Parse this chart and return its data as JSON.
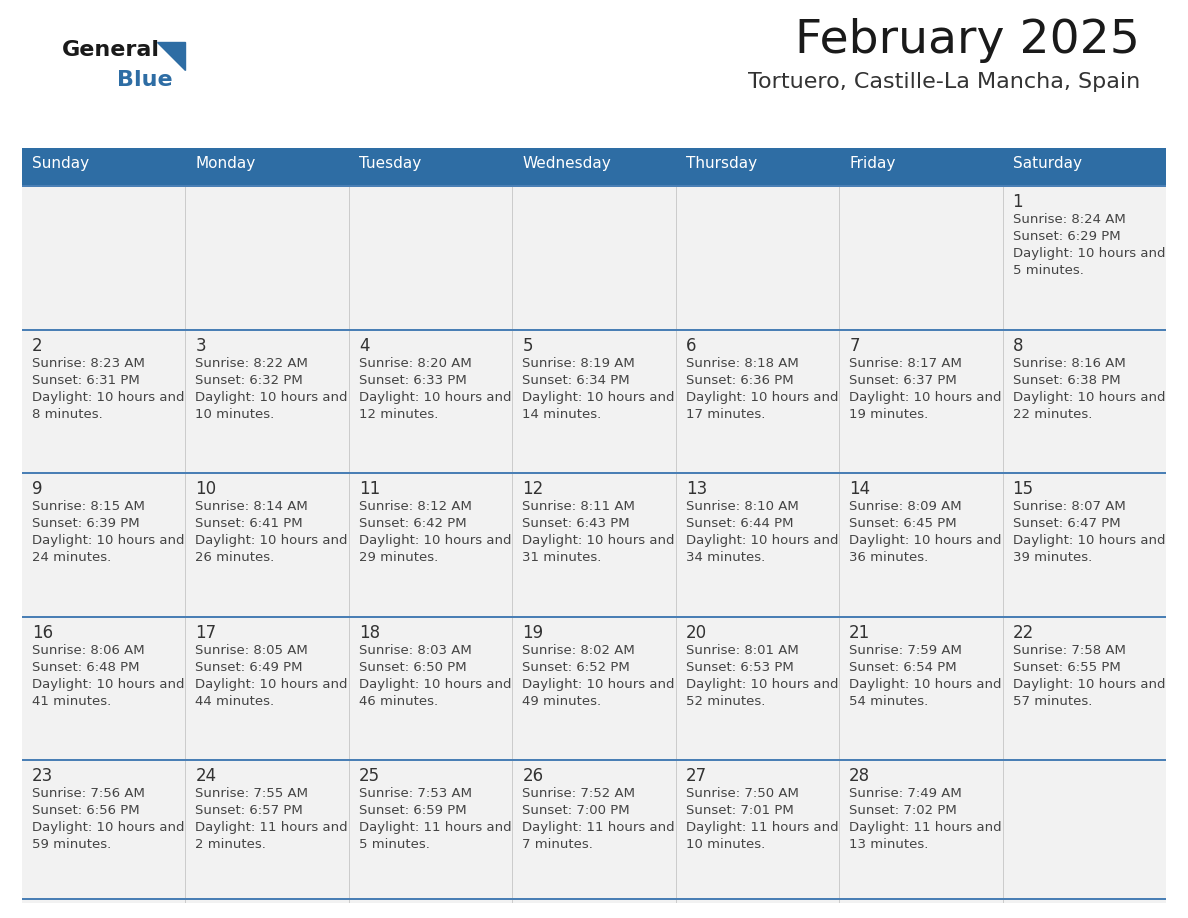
{
  "title": "February 2025",
  "subtitle": "Tortuero, Castille-La Mancha, Spain",
  "days_of_week": [
    "Sunday",
    "Monday",
    "Tuesday",
    "Wednesday",
    "Thursday",
    "Friday",
    "Saturday"
  ],
  "header_bg": "#2E6DA4",
  "header_text": "#FFFFFF",
  "cell_bg": "#F2F2F2",
  "cell_bg_empty": "#EBEBEB",
  "border_color": "#2E6DA4",
  "row_border_color": "#4A7FB5",
  "day_number_color": "#333333",
  "text_color": "#444444",
  "logo_general_color": "#1A1A1A",
  "logo_blue_color": "#2E6DA4",
  "calendar_data": [
    [
      null,
      null,
      null,
      null,
      null,
      null,
      1
    ],
    [
      2,
      3,
      4,
      5,
      6,
      7,
      8
    ],
    [
      9,
      10,
      11,
      12,
      13,
      14,
      15
    ],
    [
      16,
      17,
      18,
      19,
      20,
      21,
      22
    ],
    [
      23,
      24,
      25,
      26,
      27,
      28,
      null
    ]
  ],
  "cell_info": {
    "1": {
      "sunrise": "8:24 AM",
      "sunset": "6:29 PM",
      "daylight": "10 hours and 5 minutes."
    },
    "2": {
      "sunrise": "8:23 AM",
      "sunset": "6:31 PM",
      "daylight": "10 hours and 8 minutes."
    },
    "3": {
      "sunrise": "8:22 AM",
      "sunset": "6:32 PM",
      "daylight": "10 hours and 10 minutes."
    },
    "4": {
      "sunrise": "8:20 AM",
      "sunset": "6:33 PM",
      "daylight": "10 hours and 12 minutes."
    },
    "5": {
      "sunrise": "8:19 AM",
      "sunset": "6:34 PM",
      "daylight": "10 hours and 14 minutes."
    },
    "6": {
      "sunrise": "8:18 AM",
      "sunset": "6:36 PM",
      "daylight": "10 hours and 17 minutes."
    },
    "7": {
      "sunrise": "8:17 AM",
      "sunset": "6:37 PM",
      "daylight": "10 hours and 19 minutes."
    },
    "8": {
      "sunrise": "8:16 AM",
      "sunset": "6:38 PM",
      "daylight": "10 hours and 22 minutes."
    },
    "9": {
      "sunrise": "8:15 AM",
      "sunset": "6:39 PM",
      "daylight": "10 hours and 24 minutes."
    },
    "10": {
      "sunrise": "8:14 AM",
      "sunset": "6:41 PM",
      "daylight": "10 hours and 26 minutes."
    },
    "11": {
      "sunrise": "8:12 AM",
      "sunset": "6:42 PM",
      "daylight": "10 hours and 29 minutes."
    },
    "12": {
      "sunrise": "8:11 AM",
      "sunset": "6:43 PM",
      "daylight": "10 hours and 31 minutes."
    },
    "13": {
      "sunrise": "8:10 AM",
      "sunset": "6:44 PM",
      "daylight": "10 hours and 34 minutes."
    },
    "14": {
      "sunrise": "8:09 AM",
      "sunset": "6:45 PM",
      "daylight": "10 hours and 36 minutes."
    },
    "15": {
      "sunrise": "8:07 AM",
      "sunset": "6:47 PM",
      "daylight": "10 hours and 39 minutes."
    },
    "16": {
      "sunrise": "8:06 AM",
      "sunset": "6:48 PM",
      "daylight": "10 hours and 41 minutes."
    },
    "17": {
      "sunrise": "8:05 AM",
      "sunset": "6:49 PM",
      "daylight": "10 hours and 44 minutes."
    },
    "18": {
      "sunrise": "8:03 AM",
      "sunset": "6:50 PM",
      "daylight": "10 hours and 46 minutes."
    },
    "19": {
      "sunrise": "8:02 AM",
      "sunset": "6:52 PM",
      "daylight": "10 hours and 49 minutes."
    },
    "20": {
      "sunrise": "8:01 AM",
      "sunset": "6:53 PM",
      "daylight": "10 hours and 52 minutes."
    },
    "21": {
      "sunrise": "7:59 AM",
      "sunset": "6:54 PM",
      "daylight": "10 hours and 54 minutes."
    },
    "22": {
      "sunrise": "7:58 AM",
      "sunset": "6:55 PM",
      "daylight": "10 hours and 57 minutes."
    },
    "23": {
      "sunrise": "7:56 AM",
      "sunset": "6:56 PM",
      "daylight": "10 hours and 59 minutes."
    },
    "24": {
      "sunrise": "7:55 AM",
      "sunset": "6:57 PM",
      "daylight": "11 hours and 2 minutes."
    },
    "25": {
      "sunrise": "7:53 AM",
      "sunset": "6:59 PM",
      "daylight": "11 hours and 5 minutes."
    },
    "26": {
      "sunrise": "7:52 AM",
      "sunset": "7:00 PM",
      "daylight": "11 hours and 7 minutes."
    },
    "27": {
      "sunrise": "7:50 AM",
      "sunset": "7:01 PM",
      "daylight": "11 hours and 10 minutes."
    },
    "28": {
      "sunrise": "7:49 AM",
      "sunset": "7:02 PM",
      "daylight": "11 hours and 13 minutes."
    }
  }
}
